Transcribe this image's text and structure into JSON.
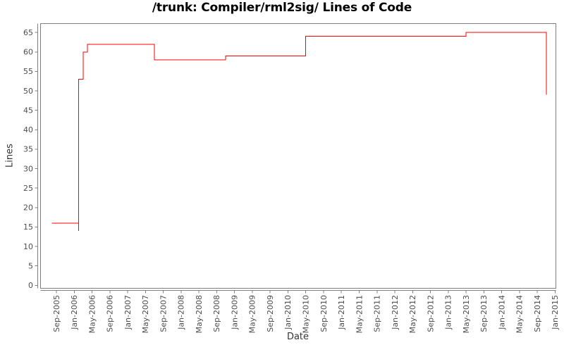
{
  "chart_data": {
    "type": "line",
    "step_interpolation": "step-after",
    "title": "/trunk: Compiler/rml2sig/ Lines of Code",
    "xlabel": "Date",
    "ylabel": "Lines",
    "x_tick_labels": [
      "Sep-2005",
      "Jan-2006",
      "May-2006",
      "Sep-2006",
      "Jan-2007",
      "May-2007",
      "Sep-2007",
      "Jan-2008",
      "May-2008",
      "Sep-2008",
      "Jan-2009",
      "May-2009",
      "Sep-2009",
      "Jan-2010",
      "May-2010",
      "Sep-2010",
      "Jan-2011",
      "May-2011",
      "Sep-2011",
      "Jan-2012",
      "May-2012",
      "Sep-2012",
      "Jan-2013",
      "May-2013",
      "Sep-2013",
      "Jan-2014",
      "May-2014",
      "Sep-2014",
      "Jan-2015"
    ],
    "y_tick_labels": [
      "0",
      "5",
      "10",
      "15",
      "20",
      "25",
      "30",
      "35",
      "40",
      "45",
      "50",
      "55",
      "60",
      "65"
    ],
    "xlim": [
      "2005-08",
      "2015-01"
    ],
    "ylim": [
      0,
      67
    ],
    "grid": "off",
    "legend": "none",
    "series": [
      {
        "name": "lines-of-code",
        "color": "#ff0000",
        "points": [
          [
            "2005-08",
            16
          ],
          [
            "2006-02",
            14
          ],
          [
            "2006-02",
            53
          ],
          [
            "2006-03",
            60
          ],
          [
            "2006-04",
            62
          ],
          [
            "2007-07",
            58
          ],
          [
            "2008-11",
            59
          ],
          [
            "2010-05",
            64
          ],
          [
            "2013-05",
            65
          ],
          [
            "2014-11",
            49
          ]
        ]
      }
    ]
  },
  "colors": {
    "background": "#ffffff",
    "plot_border": "#808080",
    "axis": "#808080",
    "tick_label": "#4d4d4d",
    "axis_label": "#333333",
    "title": "#000000",
    "series": "#ff0000"
  }
}
